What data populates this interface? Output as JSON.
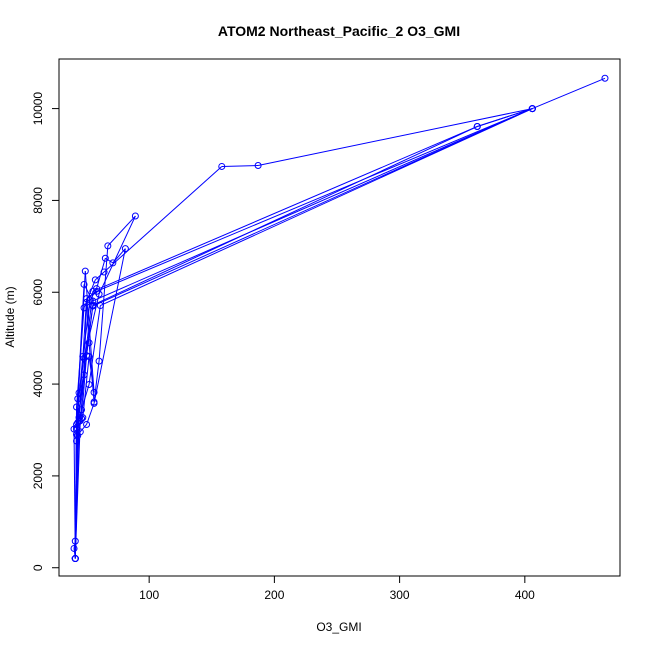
{
  "chart_data": {
    "type": "line",
    "title": "ATOM2 Northeast_Pacific_2 O3_GMI",
    "xlabel": "O3_GMI",
    "ylabel": "Altitude (m)",
    "xlim": [
      28,
      476
    ],
    "ylim": [
      -180,
      11080
    ],
    "x_ticks": [
      100,
      200,
      300,
      400
    ],
    "y_ticks": [
      0,
      2000,
      4000,
      6000,
      8000,
      10000
    ],
    "line_color": "#0000ff",
    "marker": "open-circle",
    "grid": false,
    "series": [
      {
        "x": [
          464,
          406,
          362,
          55,
          42,
          41,
          40,
          41,
          45,
          48,
          50,
          52,
          56,
          60,
          67,
          89,
          60,
          48,
          44,
          42,
          41,
          40,
          42,
          47,
          53,
          58,
          65,
          71,
          81,
          56,
          50,
          45,
          43,
          41,
          42,
          48,
          57,
          64,
          158,
          187,
          406,
          362,
          55,
          43,
          41,
          42,
          49,
          56,
          52,
          47,
          44,
          41,
          43,
          48,
          55,
          406,
          61,
          52,
          46,
          42,
          41,
          44,
          50,
          58,
          406,
          55,
          50,
          46
        ],
        "y": [
          10660,
          10000,
          9610,
          5720,
          2900,
          580,
          420,
          200,
          3200,
          4200,
          5780,
          4900,
          3610,
          4500,
          7010,
          7660,
          5960,
          4560,
          3810,
          2760,
          200,
          3020,
          3120,
          4600,
          5830,
          6080,
          6740,
          6640,
          6950,
          3580,
          3120,
          2960,
          2880,
          200,
          3500,
          5660,
          6270,
          6440,
          8740,
          8760,
          10000,
          9610,
          6020,
          3160,
          200,
          3050,
          6460,
          3820,
          4600,
          3270,
          3190,
          200,
          3680,
          6170,
          5810,
          10000,
          5710,
          3990,
          3440,
          3010,
          200,
          3270,
          5860,
          6020,
          10000,
          5700,
          4620,
          3250
        ]
      }
    ]
  }
}
